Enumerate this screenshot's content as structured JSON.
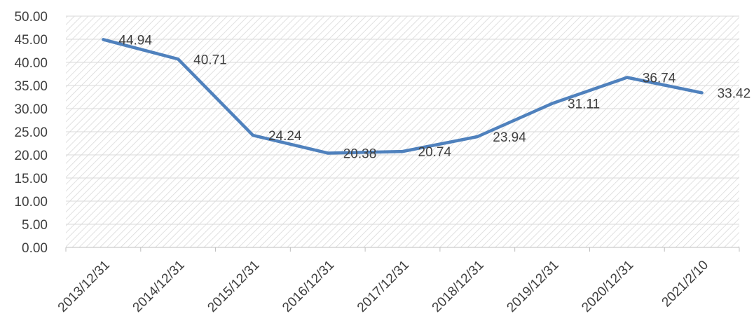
{
  "chart_data": {
    "type": "line",
    "title": "",
    "xlabel": "",
    "ylabel": "",
    "categories": [
      "2013/12/31",
      "2014/12/31",
      "2015/12/31",
      "2016/12/31",
      "2017/12/31",
      "2018/12/31",
      "2019/12/31",
      "2020/12/31",
      "2021/2/10"
    ],
    "series": [
      {
        "values": [
          44.94,
          40.71,
          24.24,
          20.38,
          20.74,
          23.94,
          31.11,
          36.74,
          33.42
        ]
      }
    ],
    "data_labels": [
      "44.94",
      "40.71",
      "24.24",
      "20.38",
      "20.74",
      "23.94",
      "31.11",
      "36.74",
      "33.42"
    ],
    "y_tick_labels": [
      "0.00",
      "5.00",
      "10.00",
      "15.00",
      "20.00",
      "25.00",
      "30.00",
      "35.00",
      "40.00",
      "45.00",
      "50.00"
    ],
    "ylim": [
      0,
      50
    ],
    "y_step": 5,
    "grid": true,
    "background": "hatched",
    "legend": "none",
    "colors": {
      "line": "#4f81bd",
      "grid": "#d9d9d9",
      "hatch": "#d9d9d9",
      "axis": "#bfbfbf",
      "text": "#404040"
    }
  }
}
